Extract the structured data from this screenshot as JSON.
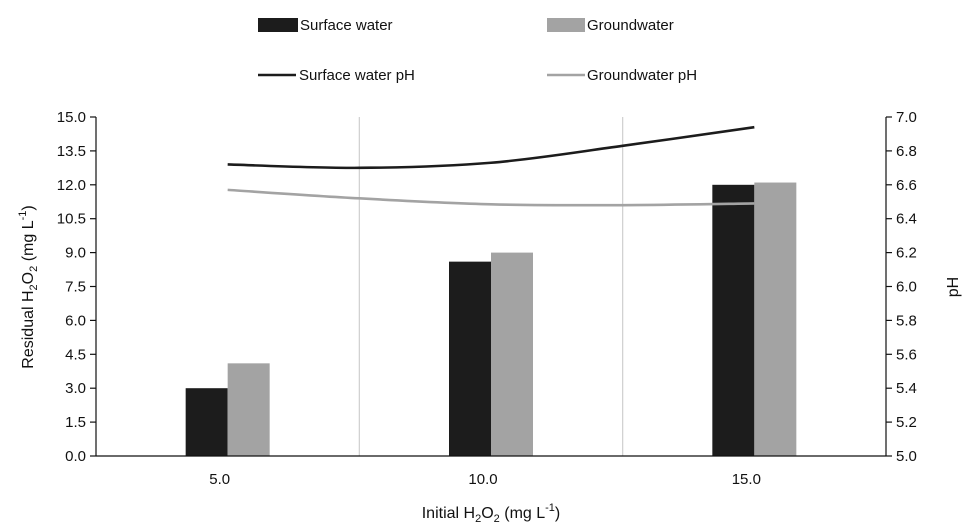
{
  "chart_data": {
    "type": "bar",
    "categories": [
      "5.0",
      "10.0",
      "15.0"
    ],
    "x_values": [
      5,
      10,
      15
    ],
    "xlabel": {
      "main": "Initial H",
      "sub": "2",
      "rest": "O",
      "sub2": "2",
      "unit": " (mg L",
      "sup": "-1",
      "close": ")"
    },
    "ylabel": {
      "main": "Residual H",
      "sub": "2",
      "rest": "O",
      "sub2": "2",
      "unit": " (mg L",
      "sup": "-1",
      "close": ")"
    },
    "y2label": "pH",
    "ylim": [
      0,
      15
    ],
    "y_ticks": [
      "0.0",
      "1.5",
      "3.0",
      "4.5",
      "6.0",
      "7.5",
      "9.0",
      "10.5",
      "12.0",
      "13.5",
      "15.0"
    ],
    "y2lim": [
      5.0,
      7.0
    ],
    "y2_ticks": [
      "5.0",
      "5.2",
      "5.4",
      "5.6",
      "5.8",
      "6.0",
      "6.2",
      "6.4",
      "6.6",
      "6.8",
      "7.0"
    ],
    "grid": "vertical separators between categories",
    "legend_position": "top",
    "bar_series": [
      {
        "name": "Surface water",
        "values": [
          3.0,
          8.6,
          12.0
        ],
        "color": "#1c1c1c"
      },
      {
        "name": "Groundwater",
        "values": [
          4.1,
          9.0,
          12.1
        ],
        "color": "#a3a3a3"
      }
    ],
    "line_series": [
      {
        "name": "Surface water pH",
        "axis": "secondary",
        "color": "#1c1c1c",
        "points": [
          [
            5,
            6.72
          ],
          [
            7.5,
            6.7
          ],
          [
            10,
            6.73
          ],
          [
            12.5,
            6.83
          ],
          [
            15,
            6.94
          ]
        ]
      },
      {
        "name": "Groundwater pH",
        "axis": "secondary",
        "color": "#a3a3a3",
        "points": [
          [
            5,
            6.57
          ],
          [
            7.5,
            6.52
          ],
          [
            10,
            6.485
          ],
          [
            12.5,
            6.48
          ],
          [
            15,
            6.49
          ]
        ]
      }
    ]
  }
}
